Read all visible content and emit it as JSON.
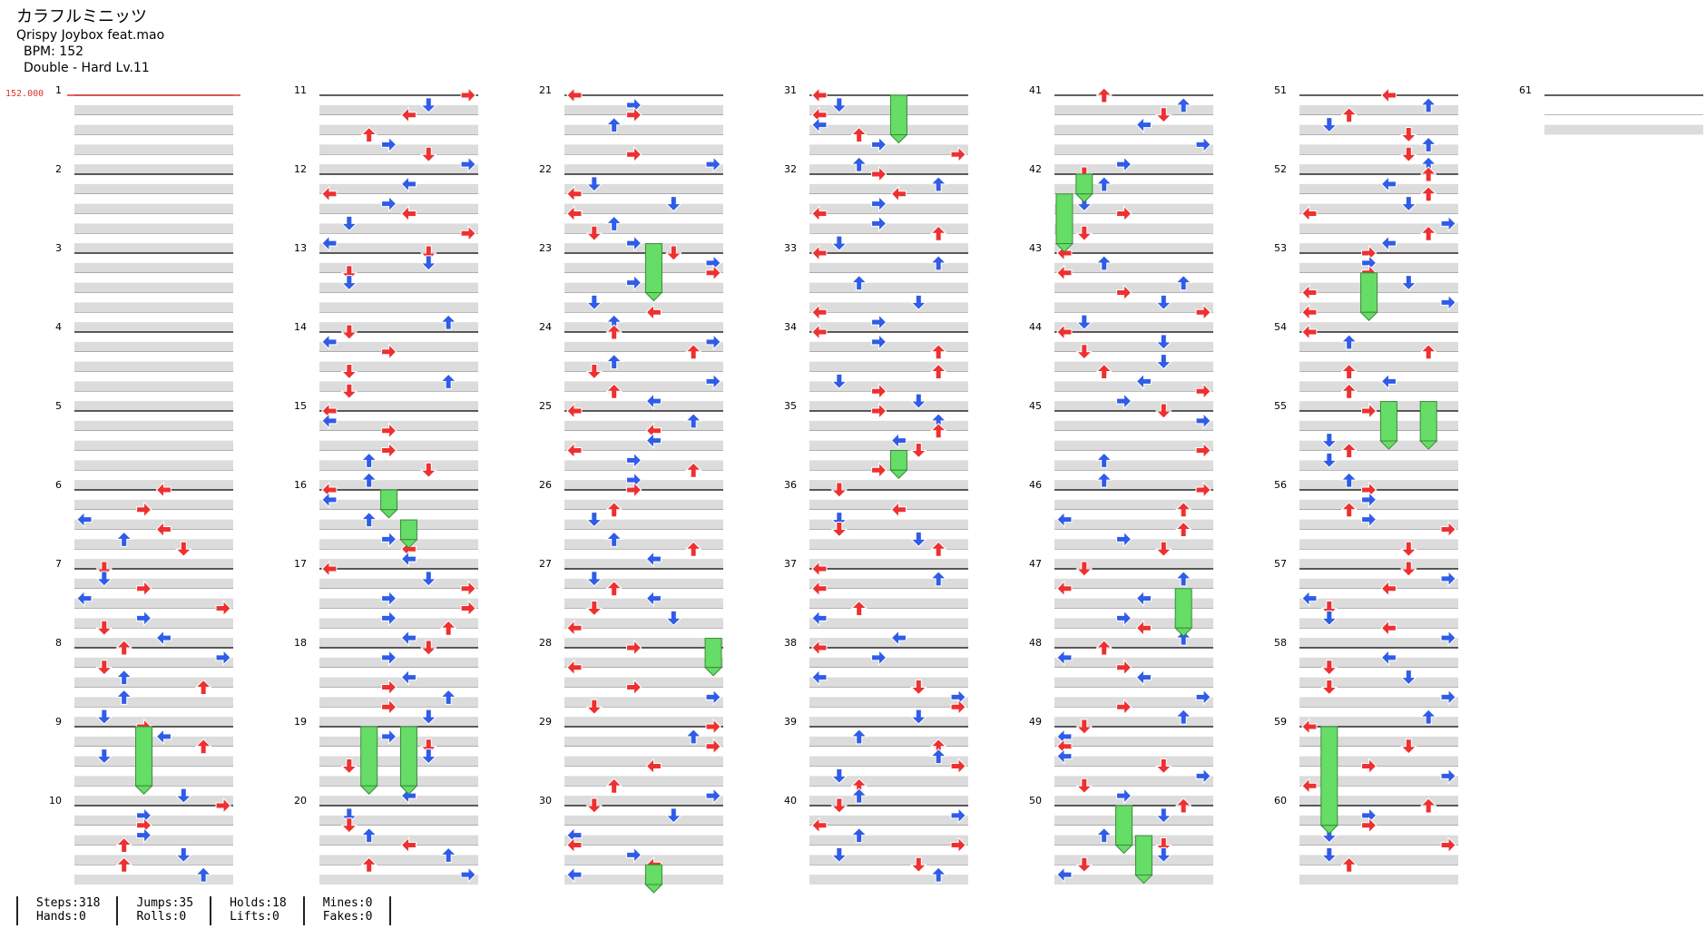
{
  "header": {
    "song_title": "カラフルミニッツ",
    "artist": "Qrispy Joybox feat.mao",
    "bpm": "BPM: 152",
    "difficulty": "Double - Hard  Lv.11"
  },
  "bpm_marker": "152.000",
  "measure_numbers": [
    "1",
    "2",
    "3",
    "4",
    "5",
    "6",
    "7",
    "8",
    "9",
    "10",
    "11",
    "12",
    "13",
    "14",
    "15",
    "16",
    "17",
    "18",
    "19",
    "20",
    "21",
    "22",
    "23",
    "24",
    "25",
    "26",
    "27",
    "28",
    "29",
    "30",
    "31",
    "32",
    "33",
    "34",
    "35",
    "36",
    "37",
    "38",
    "39",
    "40",
    "41",
    "42",
    "43",
    "44",
    "45",
    "46",
    "47",
    "48",
    "49",
    "50",
    "51",
    "52",
    "53",
    "54",
    "55",
    "56",
    "57",
    "58",
    "59",
    "60",
    "61"
  ],
  "chart_data": {
    "type": "step-chart",
    "mode": "Double",
    "lanes": 8,
    "columns": 7,
    "measures_per_column": 10,
    "total_measures": 61,
    "arrow_direction_icons": [
      "left-arrow-icon",
      "down-arrow-icon",
      "up-arrow-icon",
      "right-arrow-icon",
      "left-arrow-icon",
      "down-arrow-icon",
      "up-arrow-icon",
      "right-arrow-icon"
    ],
    "colors": {
      "quarter": "#ee3030",
      "eighth": "#2f5ce8",
      "hold": "#66dd66",
      "beat_band": "#dcdcdc",
      "bpm": "#e03030"
    },
    "holds": [
      {
        "start_measure": 9.0,
        "end_measure": 9.75,
        "lane": 3
      },
      {
        "start_measure": 16.0,
        "end_measure": 16.25,
        "lane": 3
      },
      {
        "start_measure": 16.38,
        "end_measure": 16.63,
        "lane": 4
      },
      {
        "start_measure": 19.0,
        "end_measure": 19.75,
        "lane": 2
      },
      {
        "start_measure": 19.0,
        "end_measure": 19.75,
        "lane": 4
      },
      {
        "start_measure": 22.88,
        "end_measure": 23.5,
        "lane": 4
      },
      {
        "start_measure": 27.88,
        "end_measure": 28.25,
        "lane": 7
      },
      {
        "start_measure": 30.75,
        "end_measure": 31.0,
        "lane": 4
      },
      {
        "start_measure": 31.0,
        "end_measure": 31.5,
        "lane": 4
      },
      {
        "start_measure": 35.5,
        "end_measure": 35.75,
        "lane": 4
      },
      {
        "start_measure": 42.0,
        "end_measure": 42.25,
        "lane": 1
      },
      {
        "start_measure": 42.25,
        "end_measure": 42.88,
        "lane": 0
      },
      {
        "start_measure": 47.25,
        "end_measure": 47.75,
        "lane": 6
      },
      {
        "start_measure": 50.0,
        "end_measure": 50.5,
        "lane": 3
      },
      {
        "start_measure": 50.38,
        "end_measure": 50.88,
        "lane": 4
      },
      {
        "start_measure": 53.25,
        "end_measure": 53.75,
        "lane": 3
      },
      {
        "start_measure": 54.88,
        "end_measure": 55.38,
        "lane": 4
      },
      {
        "start_measure": 54.88,
        "end_measure": 55.38,
        "lane": 6
      },
      {
        "start_measure": 59.0,
        "end_measure": 60.25,
        "lane": 1
      }
    ]
  },
  "stats": {
    "steps": "Steps:318",
    "hands": "Hands:0",
    "jumps": "Jumps:35",
    "rolls": "Rolls:0",
    "holds": "Holds:18",
    "lifts": "Lifts:0",
    "mines": "Mines:0",
    "fakes": "Fakes:0"
  }
}
